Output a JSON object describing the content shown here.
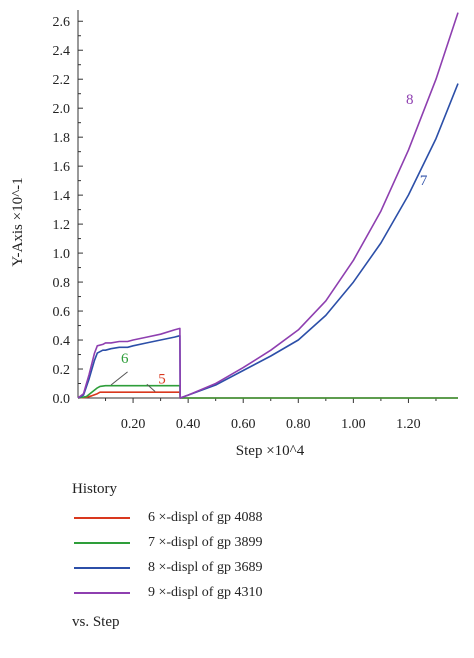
{
  "chart_data": {
    "type": "line",
    "xlabel": "Step ×10^4",
    "ylabel": "Y-Axis ×10^-1",
    "xlim": [
      0,
      1.38
    ],
    "ylim": [
      0,
      2.65
    ],
    "x_ticks": [
      "0.20",
      "0.40",
      "0.60",
      "0.80",
      "1.00",
      "1.20"
    ],
    "y_ticks": [
      "0.0",
      "0.2",
      "0.4",
      "0.6",
      "0.8",
      "1.0",
      "1.2",
      "1.4",
      "1.6",
      "1.8",
      "2.0",
      "2.2",
      "2.4",
      "2.6"
    ],
    "grid": false,
    "legend_position": "bottom",
    "series": [
      {
        "name": "6 ×-displ of gp 4088",
        "marker": "5",
        "color": "#d9381e",
        "x": [
          0.0,
          0.03,
          0.05,
          0.07,
          0.08,
          0.1,
          0.2,
          0.3,
          0.37,
          0.371,
          0.4,
          0.6,
          0.8,
          1.0,
          1.2,
          1.38
        ],
        "y": [
          0.0,
          0.005,
          0.015,
          0.03,
          0.04,
          0.04,
          0.04,
          0.04,
          0.04,
          0.0,
          0.0,
          0.0,
          0.0,
          0.0,
          0.0,
          0.0
        ]
      },
      {
        "name": "7 ×-displ of gp 3899",
        "marker": "6",
        "color": "#2e9e3a",
        "x": [
          0.0,
          0.03,
          0.05,
          0.07,
          0.08,
          0.1,
          0.2,
          0.3,
          0.37,
          0.371,
          0.4,
          0.6,
          0.8,
          1.0,
          1.2,
          1.38
        ],
        "y": [
          0.0,
          0.01,
          0.04,
          0.07,
          0.08,
          0.085,
          0.085,
          0.085,
          0.085,
          0.0,
          0.0,
          0.0,
          0.0,
          0.0,
          0.0,
          0.0
        ]
      },
      {
        "name": "8 ×-displ of gp 3689",
        "marker": "7",
        "color": "#2c4fa8",
        "x": [
          0.0,
          0.02,
          0.04,
          0.06,
          0.07,
          0.09,
          0.1,
          0.12,
          0.15,
          0.18,
          0.2,
          0.25,
          0.3,
          0.35,
          0.37,
          0.371,
          0.4,
          0.5,
          0.6,
          0.7,
          0.8,
          0.9,
          1.0,
          1.1,
          1.2,
          1.3,
          1.38
        ],
        "y": [
          0.0,
          0.02,
          0.13,
          0.26,
          0.31,
          0.33,
          0.33,
          0.34,
          0.35,
          0.35,
          0.36,
          0.38,
          0.4,
          0.42,
          0.43,
          0.0,
          0.02,
          0.09,
          0.19,
          0.29,
          0.4,
          0.57,
          0.8,
          1.07,
          1.4,
          1.79,
          2.17
        ]
      },
      {
        "name": "9 ×-displ of gp 4310",
        "marker": "8",
        "color": "#8e3fb0",
        "x": [
          0.0,
          0.02,
          0.04,
          0.06,
          0.07,
          0.09,
          0.1,
          0.12,
          0.15,
          0.18,
          0.2,
          0.25,
          0.3,
          0.35,
          0.37,
          0.371,
          0.4,
          0.5,
          0.6,
          0.7,
          0.8,
          0.9,
          1.0,
          1.1,
          1.2,
          1.3,
          1.38
        ],
        "y": [
          0.0,
          0.03,
          0.16,
          0.31,
          0.36,
          0.37,
          0.38,
          0.38,
          0.39,
          0.39,
          0.4,
          0.42,
          0.44,
          0.47,
          0.48,
          0.0,
          0.02,
          0.1,
          0.21,
          0.33,
          0.47,
          0.67,
          0.95,
          1.29,
          1.71,
          2.2,
          2.66
        ]
      }
    ],
    "annotations": [
      {
        "text": "5",
        "x": 0.305,
        "y": 0.1,
        "color": "#d9381e"
      },
      {
        "text": "6",
        "x": 0.17,
        "y": 0.24,
        "color": "#2e9e3a"
      },
      {
        "text": "7",
        "x": 1.255,
        "y": 1.47,
        "color": "#2c4fa8"
      },
      {
        "text": "8",
        "x": 1.205,
        "y": 2.03,
        "color": "#8e3fb0"
      }
    ]
  },
  "legend": {
    "title": "History",
    "footer": "vs. Step"
  }
}
